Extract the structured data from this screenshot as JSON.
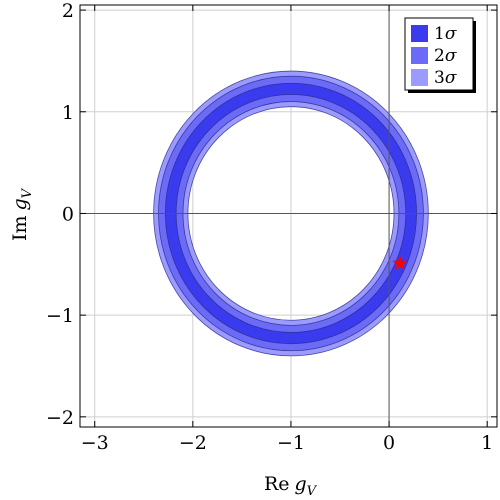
{
  "chart_data": {
    "type": "contour",
    "xlabel_main": "Re",
    "xlabel_var": "g",
    "xlabel_sub": "V",
    "ylabel_main": "Im",
    "ylabel_var": "g",
    "ylabel_sub": "V",
    "xlim": [
      -3.15,
      1.1
    ],
    "ylim": [
      -2.1,
      2.05
    ],
    "x_ticks": [
      -3,
      -2,
      -1,
      0,
      1
    ],
    "y_ticks": [
      -2,
      -1,
      0,
      1,
      2
    ],
    "x_tick_labels": [
      "−3",
      "−2",
      "−1",
      "0",
      "1"
    ],
    "y_tick_labels": [
      "−2",
      "−1",
      "0",
      "1",
      "2"
    ],
    "grid": true,
    "legend_position": "top-right",
    "ring_center": [
      -1.0,
      0.0
    ],
    "regions": [
      {
        "name": "3σ",
        "sigma_label": "3",
        "r_inner": 1.05,
        "r_outer": 1.4,
        "color": "#9a9aff"
      },
      {
        "name": "2σ",
        "sigma_label": "2",
        "r_inner": 1.1,
        "r_outer": 1.35,
        "color": "#6b6bf7"
      },
      {
        "name": "1σ",
        "sigma_label": "1",
        "r_inner": 1.17,
        "r_outer": 1.28,
        "color": "#3a3aee"
      }
    ],
    "legend_entries": [
      {
        "sigma_label": "1",
        "color": "#3a3aee"
      },
      {
        "sigma_label": "2",
        "color": "#6b6bf7"
      },
      {
        "sigma_label": "3",
        "color": "#9a9aff"
      }
    ],
    "sigma_symbol": "σ",
    "marker": {
      "x": 0.11,
      "y": -0.49,
      "shape": "star",
      "color": "#ff0000"
    }
  }
}
